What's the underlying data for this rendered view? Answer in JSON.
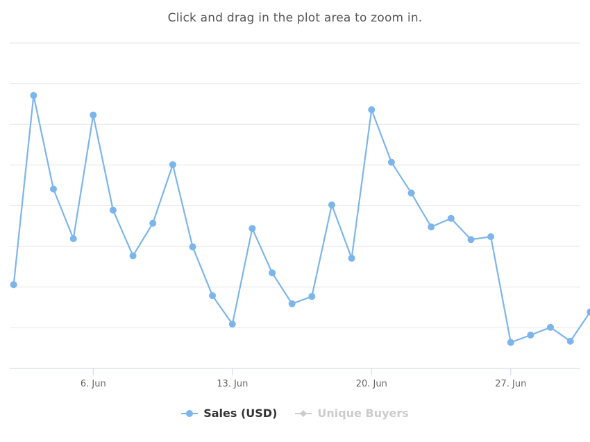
{
  "subtitle": "Click and drag in the plot area to zoom in.",
  "legend": {
    "items": [
      {
        "label": "Sales (USD)",
        "active": true,
        "color": "#7cb5ec"
      },
      {
        "label": "Unique Buyers",
        "active": false,
        "color": "#cccccc"
      }
    ]
  },
  "colors": {
    "series": "#7cb5ec",
    "grid": "#e6e6e6",
    "axis": "#ccd6eb",
    "tick_label": "#666666"
  },
  "chart_data": {
    "type": "line",
    "title": "",
    "subtitle": "Click and drag in the plot area to zoom in.",
    "xlabel": "",
    "ylabel": "",
    "grid": true,
    "legend_position": "bottom-center",
    "x_tick_labels": [
      {
        "day": 6,
        "label": "6. Jun"
      },
      {
        "day": 13,
        "label": "13. Jun"
      },
      {
        "day": 20,
        "label": "20. Jun"
      },
      {
        "day": 27,
        "label": "27. Jun"
      }
    ],
    "xlim": [
      1.8,
      30.5
    ],
    "ylim": [
      0,
      8
    ],
    "y_gridlines": [
      0,
      1,
      2,
      3,
      4,
      5,
      6,
      7,
      8
    ],
    "y_tick_labels_visible": false,
    "series": [
      {
        "name": "Sales (USD)",
        "visible": true,
        "x": [
          2,
          3,
          4,
          5,
          6,
          7,
          8,
          9,
          10,
          11,
          12,
          13,
          14,
          15,
          16,
          17,
          18,
          19,
          20,
          21,
          22,
          23,
          24,
          25,
          26,
          27,
          28,
          29,
          30,
          31
        ],
        "values": [
          2.06,
          6.71,
          4.41,
          3.19,
          6.23,
          3.89,
          2.77,
          3.57,
          5.01,
          2.99,
          1.79,
          1.09,
          3.44,
          2.35,
          1.59,
          1.77,
          4.02,
          2.71,
          6.36,
          5.07,
          4.31,
          3.48,
          3.69,
          3.17,
          3.24,
          0.64,
          0.82,
          1.01,
          0.67,
          1.39
        ]
      },
      {
        "name": "Unique Buyers",
        "visible": false,
        "values": []
      }
    ]
  }
}
